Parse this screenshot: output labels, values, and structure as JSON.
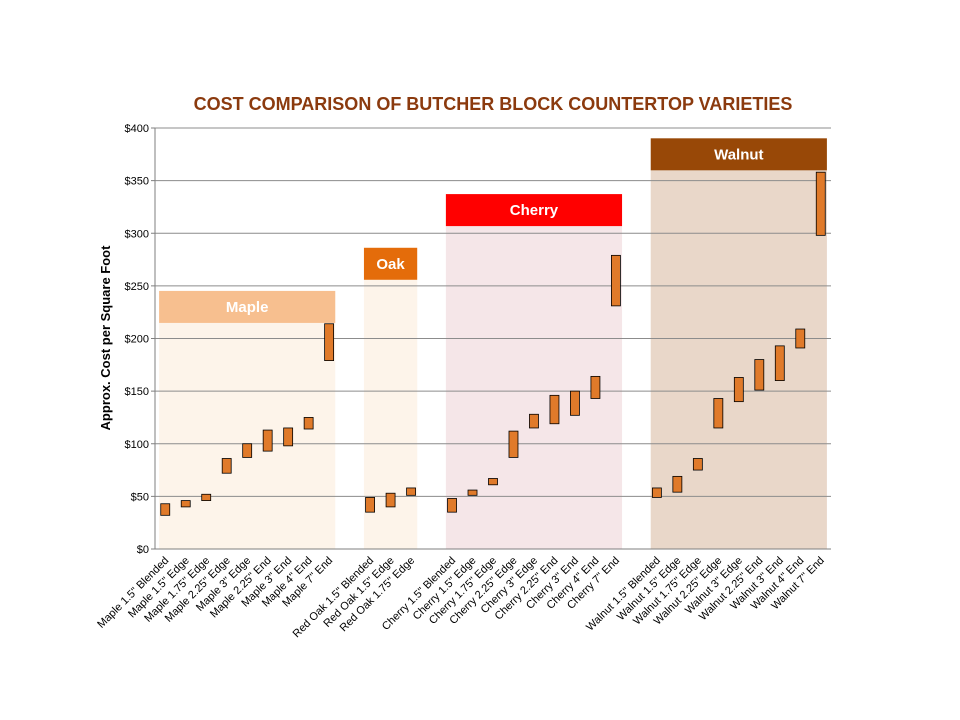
{
  "chart_data": {
    "type": "floating-bar",
    "title": "COST COMPARISON OF BUTCHER BLOCK COUNTERTOP VARIETIES",
    "xlabel": "",
    "ylabel": "Approx. Cost per Square Foot",
    "ylim": [
      0,
      400
    ],
    "yticks": [
      "$0",
      "$50",
      "$100",
      "$150",
      "$200",
      "$250",
      "$300",
      "$350",
      "$400"
    ],
    "ytick_values": [
      0,
      50,
      100,
      150,
      200,
      250,
      300,
      350,
      400
    ],
    "grid": true,
    "colors": {
      "title": "#8b3a0e",
      "bar_fill": "#e07a2a",
      "bar_stroke": "#000000",
      "grid": "#8c8c8c"
    },
    "groups": [
      {
        "name": "Maple",
        "label_color": "#f7bf8f",
        "band_color": "#fdf4ea",
        "label_value": 230,
        "band_top": 215
      },
      {
        "name": "Oak",
        "label_color": "#e46c0a",
        "band_color": "#fdf4ea",
        "label_value": 271,
        "band_top": 256
      },
      {
        "name": "Cherry",
        "label_color": "#ff0000",
        "band_color": "#f5e6e8",
        "label_value": 322,
        "band_top": 307
      },
      {
        "name": "Walnut",
        "label_color": "#984807",
        "band_color": "#e9d7c9",
        "label_value": 375,
        "band_top": 360
      }
    ],
    "series": [
      {
        "group": "Maple",
        "categories": [
          "Maple 1.5\" Blended",
          "Maple 1.5\" Edge",
          "Maple 1.75\" Edge",
          "Maple 2.25\" Edge",
          "Maple 3\" Edge",
          "Maple 2.25\" End",
          "Maple 3\" End",
          "Maple 4\" End",
          "Maple 7\" End"
        ],
        "low": [
          32,
          40,
          46,
          72,
          87,
          93,
          98,
          114,
          179
        ],
        "high": [
          43,
          46,
          52,
          86,
          100,
          113,
          115,
          125,
          214
        ]
      },
      {
        "group": "Oak",
        "categories": [
          "Red Oak 1.5\" Blended",
          "Red Oak 1.5\" Edge",
          "Red Oak 1.75\" Edge"
        ],
        "low": [
          35,
          40,
          51
        ],
        "high": [
          49,
          53,
          58
        ]
      },
      {
        "group": "Cherry",
        "categories": [
          "Cherry 1.5\" Blended",
          "Cherry 1.5\" Edge",
          "Cherry 1.75\" Edge",
          "Cherry 2.25\" Edge",
          "Cherry 3\" Edge",
          "Cherry 2.25\" End",
          "Cherry 3\" End",
          "Cherry 4\" End",
          "Cherry 7\" End"
        ],
        "low": [
          35,
          51,
          61,
          87,
          115,
          119,
          127,
          143,
          231
        ],
        "high": [
          48,
          56,
          67,
          112,
          128,
          146,
          150,
          164,
          279
        ]
      },
      {
        "group": "Walnut",
        "categories": [
          "Walnut 1.5\" Blended",
          "Walnut 1.5\" Edge",
          "Walnut 1.75\" Edge",
          "Walnut 2.25\" Edge",
          "Walnut 3\" Edge",
          "Walnut 2.25\" End",
          "Walnut 3\" End",
          "Walnut 4\" End",
          "Walnut 7\" End"
        ],
        "low": [
          49,
          54,
          75,
          115,
          140,
          151,
          160,
          191,
          298
        ],
        "high": [
          58,
          69,
          86,
          143,
          163,
          180,
          193,
          209,
          358
        ]
      }
    ]
  }
}
